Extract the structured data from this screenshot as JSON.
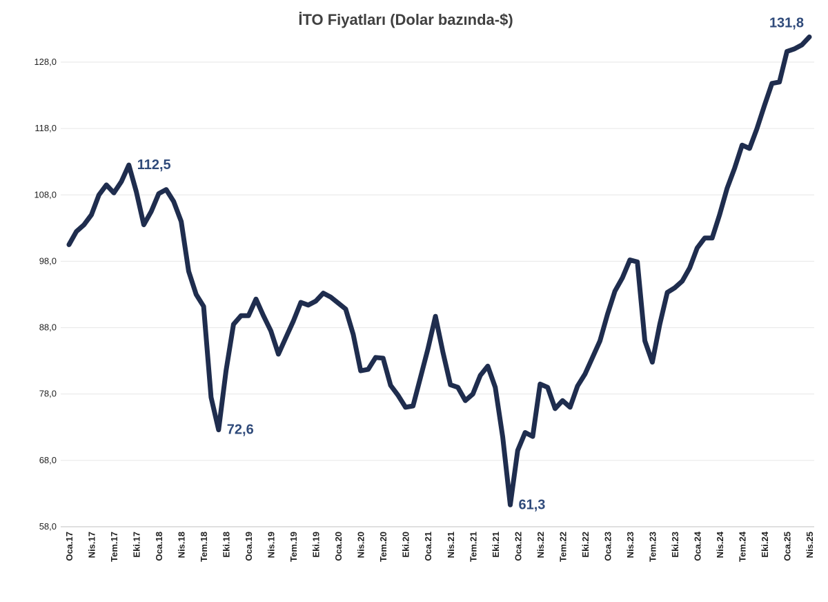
{
  "chart_data": {
    "type": "line",
    "title": "İTO Fiyatları (Dolar bazında-$)",
    "xlabel": "",
    "ylabel": "",
    "ylim": [
      58,
      133.5
    ],
    "yticks": [
      58,
      68,
      78,
      88,
      98,
      108,
      118,
      128
    ],
    "ytick_labels": [
      "58,0",
      "68,0",
      "78,0",
      "88,0",
      "98,0",
      "108,0",
      "118,0",
      "128,0"
    ],
    "grid": true,
    "legend": "none",
    "line_color": "#1f2d4e",
    "label_color": "#2f4a7a",
    "x_tick_labels": [
      {
        "index": 0,
        "label": "Oca.17"
      },
      {
        "index": 3,
        "label": "Nis.17"
      },
      {
        "index": 6,
        "label": "Tem.17"
      },
      {
        "index": 9,
        "label": "Eki.17"
      },
      {
        "index": 12,
        "label": "Oca.18"
      },
      {
        "index": 15,
        "label": "Nis.18"
      },
      {
        "index": 18,
        "label": "Tem.18"
      },
      {
        "index": 21,
        "label": "Eki.18"
      },
      {
        "index": 24,
        "label": "Oca.19"
      },
      {
        "index": 27,
        "label": "Nis.19"
      },
      {
        "index": 30,
        "label": "Tem.19"
      },
      {
        "index": 33,
        "label": "Eki.19"
      },
      {
        "index": 36,
        "label": "Oca.20"
      },
      {
        "index": 39,
        "label": "Nis.20"
      },
      {
        "index": 42,
        "label": "Tem.20"
      },
      {
        "index": 45,
        "label": "Eki.20"
      },
      {
        "index": 48,
        "label": "Oca.21"
      },
      {
        "index": 51,
        "label": "Nis.21"
      },
      {
        "index": 54,
        "label": "Tem.21"
      },
      {
        "index": 57,
        "label": "Eki.21"
      },
      {
        "index": 60,
        "label": "Oca.22"
      },
      {
        "index": 63,
        "label": "Nis.22"
      },
      {
        "index": 66,
        "label": "Tem.22"
      },
      {
        "index": 69,
        "label": "Eki.22"
      },
      {
        "index": 72,
        "label": "Oca.23"
      },
      {
        "index": 75,
        "label": "Nis.23"
      },
      {
        "index": 78,
        "label": "Tem.23"
      },
      {
        "index": 81,
        "label": "Eki.23"
      },
      {
        "index": 84,
        "label": "Oca.24"
      },
      {
        "index": 87,
        "label": "Nis.24"
      },
      {
        "index": 90,
        "label": "Tem.24"
      },
      {
        "index": 93,
        "label": "Eki.24"
      },
      {
        "index": 96,
        "label": "Oca.25"
      },
      {
        "index": 99,
        "label": "Nis.25"
      }
    ],
    "series": [
      {
        "values": [
          100.5,
          102.5,
          103.5,
          105.0,
          108.0,
          109.5,
          108.3,
          110.0,
          112.5,
          108.5,
          103.5,
          105.5,
          108.2,
          108.8,
          107.0,
          104.0,
          96.5,
          93.0,
          91.2,
          77.5,
          72.6,
          81.5,
          88.5,
          89.8,
          89.8,
          92.3,
          89.8,
          87.5,
          84.0,
          86.5,
          89.0,
          91.8,
          91.4,
          92.0,
          93.2,
          92.6,
          91.7,
          90.8,
          87.0,
          81.5,
          81.7,
          83.5,
          83.4,
          79.3,
          77.8,
          76.0,
          76.2,
          80.5,
          84.8,
          89.7,
          84.3,
          79.4,
          79.0,
          77.0,
          78.0,
          80.8,
          82.2,
          79.0,
          71.5,
          61.3,
          69.5,
          72.2,
          71.6,
          79.5,
          79.0,
          75.8,
          77.0,
          76.0,
          79.2,
          81.0,
          83.5,
          86.0,
          90.0,
          93.5,
          95.5,
          98.2,
          97.9,
          86.0,
          82.8,
          88.5,
          93.3,
          94.0,
          95.0,
          97.0,
          100.0,
          101.5,
          101.5,
          105.0,
          109.0,
          112.0,
          115.5,
          115.0,
          118.0,
          121.5,
          124.8,
          125.0,
          129.6,
          130.0,
          130.6,
          131.8
        ]
      }
    ],
    "annotations": [
      {
        "index": 8,
        "text": "112,5"
      },
      {
        "index": 20,
        "text": "72,6"
      },
      {
        "index": 59,
        "text": "61,3"
      },
      {
        "index": 99,
        "text": "131,8"
      }
    ]
  }
}
